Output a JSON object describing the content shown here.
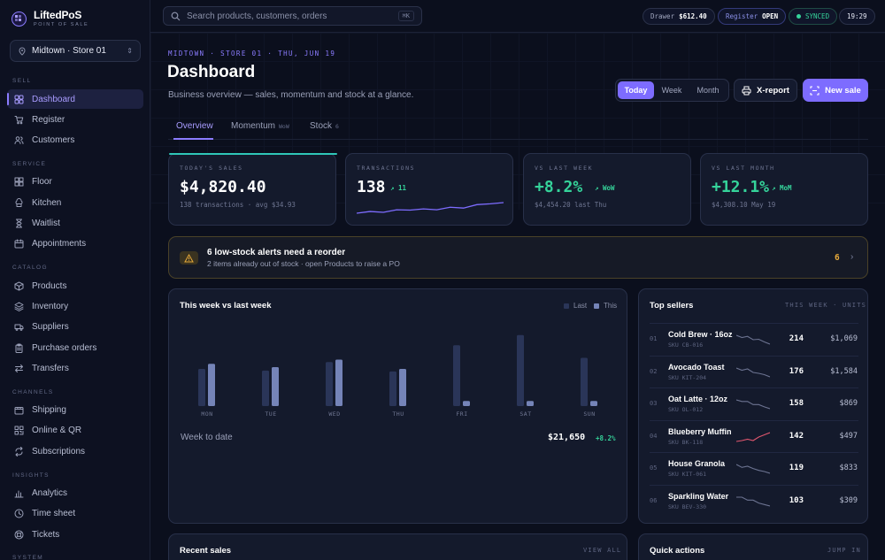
{
  "brand": {
    "name": "LiftedPoS",
    "sub": "POINT OF SALE"
  },
  "store": {
    "label": "Midtown · Store 01"
  },
  "sidebar": {
    "sections": [
      {
        "title": "SELL",
        "items": [
          {
            "label": "Dashboard",
            "icon": "grid-icon",
            "active": true
          },
          {
            "label": "Register",
            "icon": "cart-icon"
          },
          {
            "label": "Customers",
            "icon": "users-icon"
          }
        ]
      },
      {
        "title": "SERVICE",
        "items": [
          {
            "label": "Floor",
            "icon": "layout-icon"
          },
          {
            "label": "Kitchen",
            "icon": "chef-icon"
          },
          {
            "label": "Waitlist",
            "icon": "hourglass-icon"
          },
          {
            "label": "Appointments",
            "icon": "calendar-icon"
          }
        ]
      },
      {
        "title": "CATALOG",
        "items": [
          {
            "label": "Products",
            "icon": "box-icon"
          },
          {
            "label": "Inventory",
            "icon": "layers-icon"
          },
          {
            "label": "Suppliers",
            "icon": "truck-icon"
          },
          {
            "label": "Purchase orders",
            "icon": "clipboard-icon"
          },
          {
            "label": "Transfers",
            "icon": "transfer-icon"
          }
        ]
      },
      {
        "title": "CHANNELS",
        "items": [
          {
            "label": "Shipping",
            "icon": "package-icon"
          },
          {
            "label": "Online & QR",
            "icon": "qr-icon"
          },
          {
            "label": "Subscriptions",
            "icon": "repeat-icon"
          }
        ]
      },
      {
        "title": "INSIGHTS",
        "items": [
          {
            "label": "Analytics",
            "icon": "chart-icon"
          },
          {
            "label": "Time sheet",
            "icon": "clock-icon"
          },
          {
            "label": "Tickets",
            "icon": "lifebuoy-icon"
          }
        ]
      },
      {
        "title": "SYSTEM",
        "items": []
      }
    ]
  },
  "topbar": {
    "search_placeholder": "Search products, customers, orders",
    "shortcut": "⌘K",
    "drawer_label": "Drawer",
    "drawer_value": "$612.40",
    "register_label": "Register",
    "register_value": "OPEN",
    "sync_label": "SYNCED",
    "time": "19:29"
  },
  "header": {
    "crumb": "MIDTOWN · STORE 01 · THU, JUN 19",
    "title": "Dashboard",
    "subtitle": "Business overview — sales, momentum and stock at a glance.",
    "ranges": [
      "Today",
      "Week",
      "Month"
    ],
    "xreport_label": "X-report",
    "new_sale_label": "New sale"
  },
  "tabs": [
    {
      "label": "Overview",
      "badge": ""
    },
    {
      "label": "Momentum",
      "badge": "WoW"
    },
    {
      "label": "Stock",
      "badge": "6"
    }
  ],
  "kpis": [
    {
      "label": "TODAY'S SALES",
      "value": "$4,820.40",
      "delta": "",
      "foot": "138 transactions · avg $34.93"
    },
    {
      "label": "TRANSACTIONS",
      "value": "138",
      "delta": "↗ 11",
      "foot": "",
      "spark": [
        10,
        9,
        9.5,
        8,
        8.2,
        7.5,
        8,
        6.5,
        7,
        5,
        4.5,
        3.8
      ]
    },
    {
      "label": "VS LAST WEEK",
      "value": "+8.2%",
      "delta": "↗ WoW",
      "foot": "$4,454.20 last Thu"
    },
    {
      "label": "VS LAST MONTH",
      "value": "+12.1%",
      "delta": "↗ MoM",
      "foot": "$4,308.10 May 19"
    }
  ],
  "alert": {
    "title": "6 low-stock alerts need a reorder",
    "detail": "2 items already out of stock · open Products to raise a PO",
    "count": "6"
  },
  "week_chart": {
    "title": "This week vs last week",
    "legend_last": "Last",
    "legend_this": "This",
    "wtd_label": "Week to date",
    "wtd_value": "$21,650",
    "wtd_delta": "+8.2%"
  },
  "chart_data": {
    "type": "bar",
    "categories": [
      "MON",
      "TUE",
      "WED",
      "THU",
      "FRI",
      "SAT",
      "SUN"
    ],
    "series": [
      {
        "name": "Last",
        "values": [
          44,
          42,
          52,
          41,
          72,
          84,
          57
        ]
      },
      {
        "name": "This",
        "values": [
          50,
          46,
          55,
          44,
          6,
          6,
          6
        ]
      }
    ],
    "ylim": [
      0,
      90
    ],
    "colors": {
      "Last": "#2a3558",
      "This": "#7584b8"
    }
  },
  "top_sellers": {
    "title": "Top sellers",
    "meta": "THIS WEEK · UNITS",
    "items": [
      {
        "rank": "01",
        "name": "Cold Brew · 16oz",
        "sku": "SKU CB-016",
        "units": "214",
        "revenue": "$1,069",
        "trend": [
          6,
          5,
          5.5,
          4,
          4.2,
          3,
          2
        ],
        "color": "#6c7391"
      },
      {
        "rank": "02",
        "name": "Avocado Toast",
        "sku": "SKU KIT-204",
        "units": "176",
        "revenue": "$1,584",
        "trend": [
          6,
          5.5,
          5.8,
          5,
          4.8,
          4.5,
          4
        ],
        "color": "#6c7391"
      },
      {
        "rank": "03",
        "name": "Oat Latte · 12oz",
        "sku": "SKU OL-012",
        "units": "158",
        "revenue": "$869",
        "trend": [
          6,
          5.5,
          5.5,
          4.5,
          4.5,
          3.8,
          3.2
        ],
        "color": "#6c7391"
      },
      {
        "rank": "04",
        "name": "Blueberry Muffin",
        "sku": "SKU BK-118",
        "units": "142",
        "revenue": "$497",
        "trend": [
          3,
          3.2,
          3.5,
          3.2,
          4,
          4.5,
          5
        ],
        "color": "#e0566e"
      },
      {
        "rank": "05",
        "name": "House Granola",
        "sku": "SKU KIT-061",
        "units": "119",
        "revenue": "$833",
        "trend": [
          5.5,
          5,
          5.2,
          4.8,
          4.5,
          4.3,
          4
        ],
        "color": "#6c7391"
      },
      {
        "rank": "06",
        "name": "Sparkling Water",
        "sku": "SKU BEV-330",
        "units": "103",
        "revenue": "$309",
        "trend": [
          5,
          5,
          4.8,
          4.8,
          4.6,
          4.5,
          4.4
        ],
        "color": "#6c7391"
      }
    ]
  },
  "recent_sales": {
    "title": "Recent sales",
    "action": "VIEW ALL"
  },
  "quick_actions": {
    "title": "Quick actions",
    "action": "JUMP IN"
  },
  "colors": {
    "accent": "#7d6cff",
    "positive": "#35d39a",
    "warning": "#e6a93a",
    "negative": "#e0566e"
  }
}
